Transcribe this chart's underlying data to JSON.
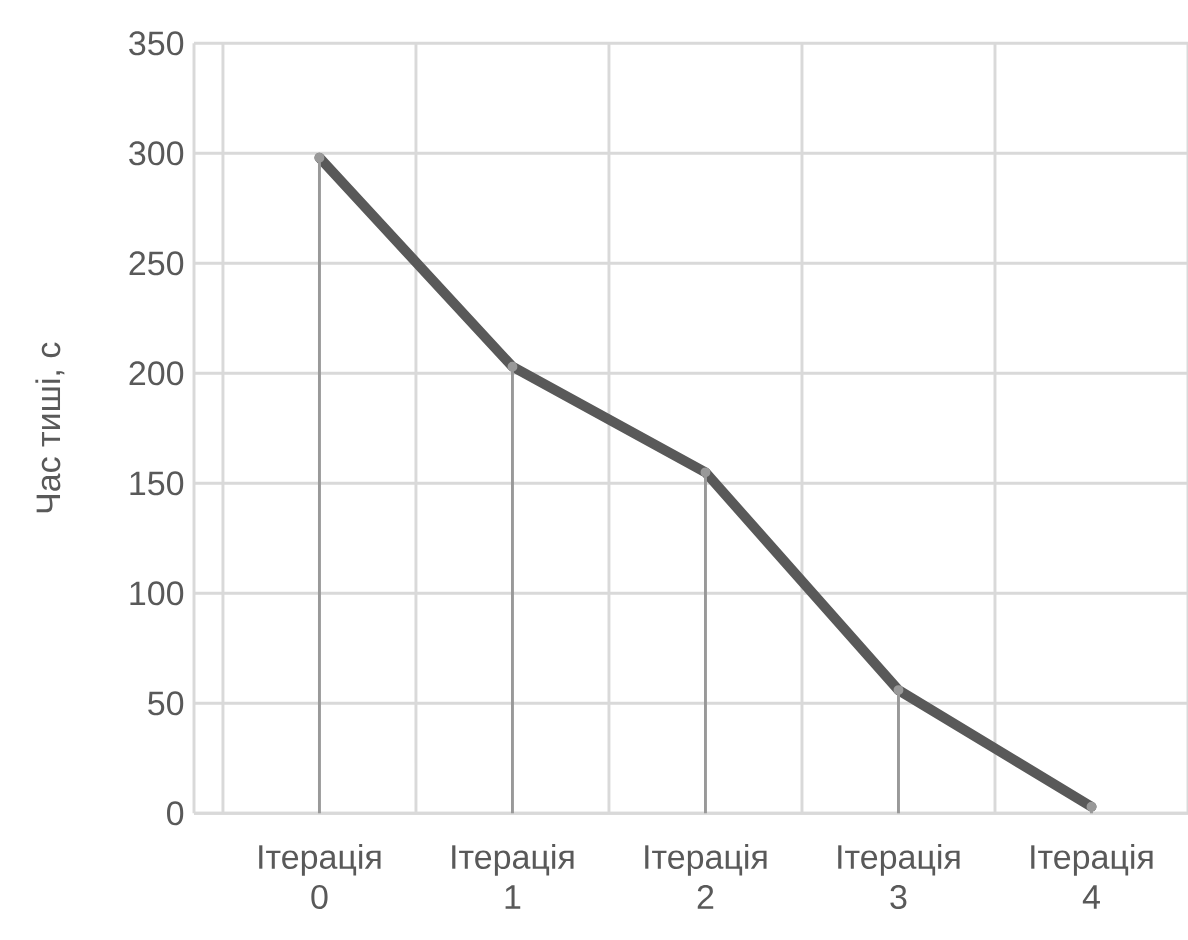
{
  "chart_data": {
    "ylabel": "Час тиші, с",
    "categories": [
      "Ітерація 0",
      "Ітерація 1",
      "Ітерація 2",
      "Ітерація 3",
      "Ітерація 4"
    ],
    "series": [
      {
        "color": "#595959",
        "values": [
          298,
          203,
          155,
          56,
          3
        ]
      },
      {
        "type": "lollipop",
        "marker": "circle",
        "color": "#999999",
        "values": [
          298,
          203,
          155,
          56,
          3
        ]
      }
    ],
    "type": "line",
    "marker": "none",
    "ylim": [
      0,
      350
    ],
    "yticks": [
      0,
      50,
      100,
      150,
      200,
      250,
      300,
      350
    ],
    "grid": true
  }
}
